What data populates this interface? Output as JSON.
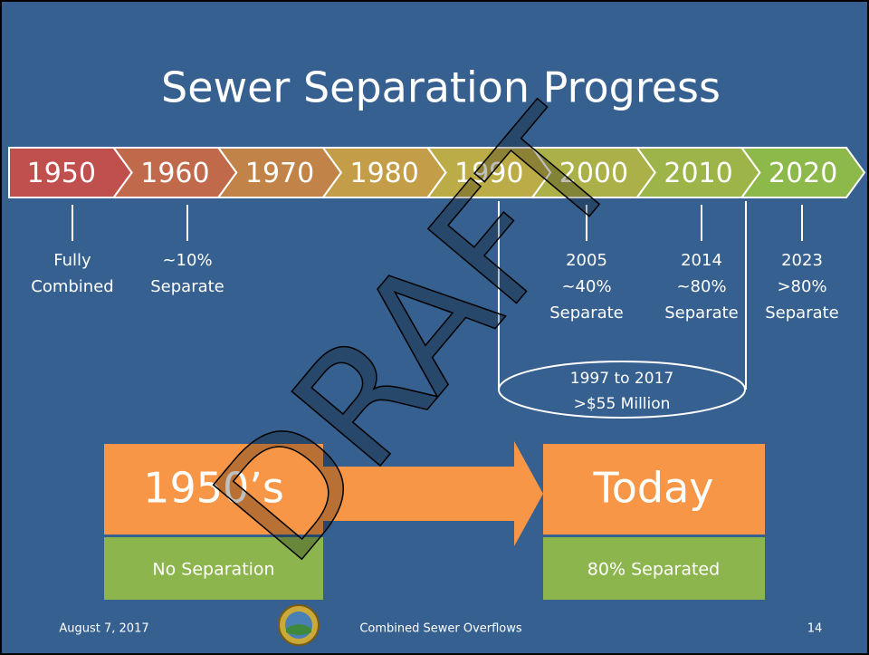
{
  "title": "Sewer Separation Progress",
  "timeline": [
    "1950",
    "1960",
    "1970",
    "1980",
    "1990",
    "2000",
    "2010",
    "2020"
  ],
  "milestones": [
    {
      "lines": [
        "Fully",
        "Combined"
      ]
    },
    {
      "lines": [
        "~10%",
        "Separate"
      ]
    },
    {
      "lines": [
        "2005",
        "~40%",
        "Separate"
      ]
    },
    {
      "lines": [
        "2014",
        "~80%",
        "Separate"
      ]
    },
    {
      "lines": [
        "2023",
        ">80%",
        "Separate"
      ]
    }
  ],
  "bracket": {
    "lines": [
      "1997 to 2017",
      ">$55 Million"
    ]
  },
  "before": {
    "heading": "1950’s",
    "status": "No Separation"
  },
  "after": {
    "heading": "Today",
    "status": "80% Separated"
  },
  "watermark": "DRAFT",
  "footer": {
    "date": "August 7, 2017",
    "title": "Combined Sewer Overflows",
    "page": "14"
  }
}
